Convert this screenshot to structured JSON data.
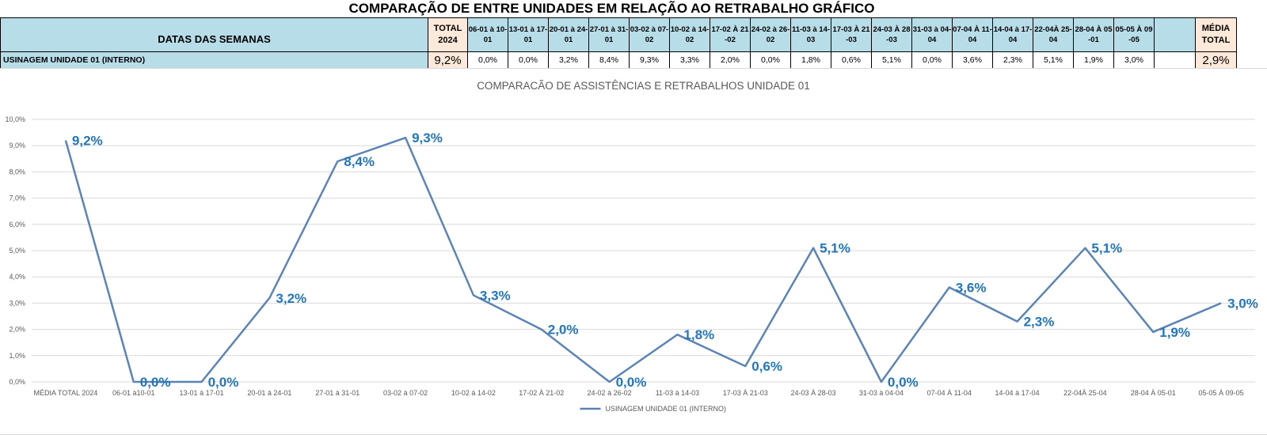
{
  "sheet": {
    "title": "COMPARAÇÃO DE ENTRE UNIDADES EM RELAÇÃO AO RETRABALHO GRÁFICO",
    "header_label": "DATAS DAS SEMANAS",
    "total_header": "TOTAL 2024",
    "media_header": "MÉDIA TOTAL",
    "week_headers": [
      "06-01 à 10-01",
      "13-01 à 17-01",
      "20-01 à 24-01",
      "27-01 à 31-01",
      "03-02 à 07-02",
      "10-02 à 14-02",
      "17-02 À 21-02",
      "24-02 à 26-02",
      "11-03 à 14-03",
      "17-03 À 21-03",
      "24-03 À 28-03",
      "31-03 à 04-04",
      "07-04 À 11-04",
      "14-04 à 17-04",
      "22-04À 25-04",
      "28-04 À 05-01",
      "05-05 À 09-05"
    ],
    "row_name": "USINAGEM UNIDADE 01 (INTERNO)",
    "row_total": "9,2%",
    "row_values": [
      "0,0%",
      "0,0%",
      "3,2%",
      "8,4%",
      "9,3%",
      "3,3%",
      "2,0%",
      "0,0%",
      "1,8%",
      "0,6%",
      "5,1%",
      "0,0%",
      "3,6%",
      "2,3%",
      "5,1%",
      "1,9%",
      "3,0%"
    ],
    "row_media": "2,9%"
  },
  "chart_data": {
    "type": "line",
    "title": "COMPARACÃO DE ASSISTÊNCIAS E RETRABALHOS UNIDADE 01",
    "categories": [
      "MÉDIA TOTAL 2024",
      "06-01 à10-01",
      "13-01 à 17-01",
      "20-01 à 24-01",
      "27-01 à 31-01",
      "03-02 à 07-02",
      "10-02 à 14-02",
      "17-02 À 21-02",
      "24-02 à 26-02",
      "11-03 à 14-03",
      "17-03 À 21-03",
      "24-03 À 28-03",
      "31-03 à 04-04",
      "07-04 À 11-04",
      "14-04 à 17-04",
      "22-04À 25-04",
      "28-04 À 05-01",
      "05-05 À 09-05"
    ],
    "series": [
      {
        "name": "USINAGEM UNIDADE 01 (INTERNO)",
        "values": [
          9.2,
          0.0,
          0.0,
          3.2,
          8.4,
          9.3,
          3.3,
          2.0,
          0.0,
          1.8,
          0.6,
          5.1,
          0.0,
          3.6,
          2.3,
          5.1,
          1.9,
          3.0
        ],
        "labels": [
          "9,2%",
          "0,0%",
          "0,0%",
          "3,2%",
          "8,4%",
          "9,3%",
          "3,3%",
          "2,0%",
          "0,0%",
          "1,8%",
          "0,6%",
          "5,1%",
          "0,0%",
          "3,6%",
          "2,3%",
          "5,1%",
          "1,9%",
          "3,0%"
        ]
      }
    ],
    "yticks": [
      "0,0%",
      "1,0%",
      "2,0%",
      "3,0%",
      "4,0%",
      "5,0%",
      "6,0%",
      "7,0%",
      "8,0%",
      "9,0%",
      "10,0%"
    ],
    "ylim": [
      0,
      10
    ],
    "grid": true,
    "legend_position": "bottom",
    "colors": {
      "line": "#5b84b6",
      "label": "#2176bd",
      "grid": "#d9d9d9",
      "header_fill": "#b7dde8",
      "total_fill": "#fde9d9"
    }
  }
}
